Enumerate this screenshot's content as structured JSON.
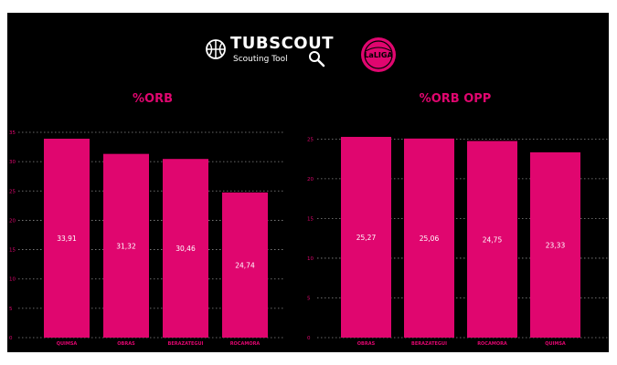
{
  "brand": {
    "name": "TUBSCOUT",
    "tagline": "Scouting Tool",
    "logo_icon": "basketball-magnifier-icon",
    "league_logo_icon": "la-liga-argentina-logo",
    "league_logo_text": "LaLIGA"
  },
  "colors": {
    "background": "#000000",
    "bar": "#e0066f",
    "label": "#e0066f",
    "value_text": "#ffffff"
  },
  "chart_data": [
    {
      "type": "bar",
      "title": "%ORB",
      "categories": [
        "QUIMSA",
        "OBRAS",
        "BERAZATEGUI",
        "ROCAMORA"
      ],
      "values": [
        33.91,
        31.32,
        30.46,
        24.74
      ],
      "value_labels": [
        "33,91",
        "31,32",
        "30,46",
        "24,74"
      ],
      "yticks": [
        0,
        5,
        10,
        15,
        20,
        25,
        30,
        35
      ],
      "ylim": [
        0,
        35
      ],
      "grid": true
    },
    {
      "type": "bar",
      "title": "%ORB OPP",
      "categories": [
        "OBRAS",
        "BERAZATEGUI",
        "ROCAMORA",
        "QUIMSA"
      ],
      "values": [
        25.27,
        25.06,
        24.75,
        23.33
      ],
      "value_labels": [
        "25,27",
        "25,06",
        "24,75",
        "23,33"
      ],
      "yticks": [
        0,
        5,
        10,
        15,
        20,
        25
      ],
      "ylim": [
        0,
        25.5
      ],
      "grid": true
    }
  ]
}
